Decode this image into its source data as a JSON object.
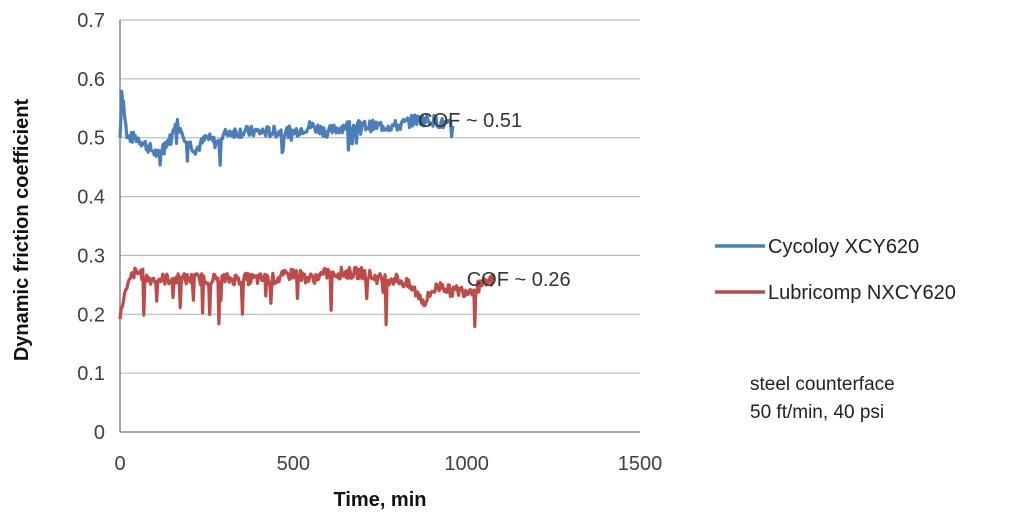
{
  "chart_data": {
    "type": "line",
    "title": "",
    "xlabel": "Time, min",
    "ylabel": "Dynamic friction coefficient",
    "xlim": [
      0,
      1500
    ],
    "ylim": [
      0,
      0.7
    ],
    "x_ticks": [
      "0",
      "500",
      "1000",
      "1500"
    ],
    "y_ticks": [
      "0",
      "0.1",
      "0.2",
      "0.3",
      "0.4",
      "0.5",
      "0.6",
      "0.7"
    ],
    "grid": "horizontal",
    "legend_position": "right",
    "series": [
      {
        "name": "Cycoloy XCY620",
        "color": "#4a7ebb",
        "x": [
          0,
          5,
          10,
          20,
          30,
          50,
          70,
          90,
          110,
          130,
          150,
          160,
          180,
          200,
          220,
          250,
          280,
          310,
          350,
          400,
          450,
          500,
          550,
          600,
          650,
          700,
          750,
          800,
          850,
          900,
          950,
          960
        ],
        "y": [
          0.5,
          0.58,
          0.56,
          0.5,
          0.5,
          0.5,
          0.49,
          0.48,
          0.47,
          0.49,
          0.5,
          0.53,
          0.51,
          0.49,
          0.48,
          0.5,
          0.49,
          0.51,
          0.51,
          0.51,
          0.51,
          0.51,
          0.52,
          0.51,
          0.52,
          0.52,
          0.52,
          0.52,
          0.53,
          0.53,
          0.52,
          0.52
        ]
      },
      {
        "name": "Lubricomp NXCY620",
        "color": "#be4b48",
        "x": [
          0,
          10,
          20,
          30,
          40,
          60,
          80,
          100,
          150,
          200,
          250,
          300,
          350,
          400,
          450,
          500,
          550,
          600,
          650,
          700,
          750,
          800,
          830,
          850,
          880,
          900,
          930,
          950,
          1000,
          1050,
          1080
        ],
        "y": [
          0.19,
          0.23,
          0.24,
          0.26,
          0.27,
          0.27,
          0.26,
          0.26,
          0.26,
          0.26,
          0.26,
          0.26,
          0.26,
          0.26,
          0.26,
          0.27,
          0.26,
          0.27,
          0.27,
          0.27,
          0.26,
          0.26,
          0.25,
          0.24,
          0.22,
          0.24,
          0.25,
          0.24,
          0.24,
          0.25,
          0.26
        ]
      }
    ],
    "annotations": [
      {
        "text": "COF ~ 0.51",
        "x": 1010,
        "y": 0.53
      },
      {
        "text": "COF ~ 0.26",
        "x": 1150,
        "y": 0.26
      }
    ],
    "note_lines": [
      "steel counterface",
      "50 ft/min, 40 psi"
    ]
  }
}
